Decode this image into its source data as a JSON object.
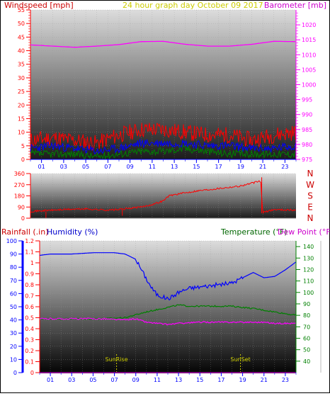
{
  "colors": {
    "red": "#ff0000",
    "blue": "#0000ff",
    "green": "#008000",
    "magenta": "#ff00ff",
    "olive": "#cccc00",
    "purple": "#cc00cc",
    "darkred": "#cc0000"
  },
  "chart_data": [
    {
      "type": "line",
      "title": "24 hour graph day   October 09 2017",
      "ylabel_left": "Windspeed [mph]",
      "ylabel_right": "Barometer [mb]",
      "x_ticks": [
        "01",
        "03",
        "05",
        "07",
        "09",
        "11",
        "13",
        "15",
        "17",
        "19",
        "21",
        "23"
      ],
      "y_left_ticks": [
        "0",
        "5",
        "10",
        "15",
        "20",
        "25",
        "30",
        "35",
        "40",
        "45",
        "50",
        "55"
      ],
      "y_right_ticks": [
        "975",
        "980",
        "985",
        "990",
        "995",
        "1000",
        "1005",
        "1010",
        "1015",
        "1020"
      ],
      "ylim_left": [
        0,
        55
      ],
      "ylim_right": [
        975,
        1025
      ],
      "grid": true,
      "series": [
        {
          "axis": "right",
          "color": "magenta",
          "x": [
            0,
            2,
            4,
            6,
            8,
            10,
            12,
            14,
            16,
            18,
            20,
            22,
            24
          ],
          "values": [
            1013.3,
            1012.9,
            1012.5,
            1012.9,
            1013.4,
            1014.4,
            1014.5,
            1013.5,
            1012.9,
            1012.9,
            1013.5,
            1014.5,
            1014.4
          ]
        },
        {
          "axis": "left",
          "color": "red",
          "x": [
            0,
            2,
            4,
            6,
            8,
            10,
            12,
            14,
            16,
            18,
            20,
            22,
            24
          ],
          "values": [
            7,
            8,
            7,
            6,
            9,
            11,
            11,
            10,
            9,
            9,
            7,
            9,
            10
          ]
        },
        {
          "axis": "left",
          "color": "blue",
          "x": [
            0,
            2,
            4,
            6,
            8,
            10,
            12,
            14,
            16,
            18,
            20,
            22,
            24
          ],
          "values": [
            4,
            5,
            4,
            3,
            4,
            6,
            6,
            6,
            5,
            5,
            4,
            4,
            5
          ]
        },
        {
          "axis": "left",
          "color": "green",
          "x": [
            0,
            2,
            4,
            6,
            8,
            10,
            12,
            14,
            16,
            18,
            20,
            22,
            24
          ],
          "values": [
            2,
            2,
            2,
            1,
            2,
            3,
            3,
            4,
            3,
            2,
            2,
            2,
            2
          ]
        }
      ]
    },
    {
      "type": "line",
      "ylim": [
        0,
        360
      ],
      "y_ticks": [
        "0",
        "90",
        "180",
        "270",
        "360"
      ],
      "compass_labels": [
        "N",
        "W",
        "S",
        "E",
        "N"
      ],
      "grid": true,
      "series": [
        {
          "color": "red",
          "x": [
            0,
            1,
            3,
            5,
            7,
            8,
            10,
            11,
            12,
            12.5,
            13,
            15,
            17,
            19,
            20.8,
            21,
            22,
            24
          ],
          "values": [
            55,
            60,
            70,
            75,
            65,
            70,
            90,
            110,
            140,
            180,
            190,
            220,
            240,
            260,
            300,
            45,
            70,
            65
          ]
        }
      ]
    },
    {
      "type": "line",
      "ylabel_left_1": "Rainfall (.in)",
      "ylabel_left_2": "Humidity (%)",
      "ylabel_right_1": "Temperature (°F)",
      "ylabel_right_2": "Dew Point (°F)",
      "rain_ticks": [
        "0",
        "0.1",
        "0.2",
        "0.3",
        "0.4",
        "0.5",
        "0.6",
        "0.7",
        "0.8",
        "0.9",
        "1",
        "1.1",
        "1.2"
      ],
      "humidity_ticks": [
        "0",
        "10",
        "20",
        "30",
        "40",
        "50",
        "60",
        "70",
        "80",
        "90",
        "100"
      ],
      "temp_ticks": [
        "40",
        "50",
        "60",
        "70",
        "80",
        "90",
        "100",
        "110",
        "120",
        "130",
        "140"
      ],
      "x_ticks": [
        "01",
        "03",
        "05",
        "07",
        "09",
        "11",
        "13",
        "15",
        "17",
        "19",
        "21",
        "23"
      ],
      "ylim_humidity": [
        0,
        100
      ],
      "ylim_temp": [
        30,
        145
      ],
      "markers": [
        {
          "label": "SunRise",
          "x": 7.2
        },
        {
          "label": "SunSet",
          "x": 18.8
        }
      ],
      "series": [
        {
          "name": "Humidity (%)",
          "axis": "humidity",
          "color": "blue",
          "x": [
            0,
            1,
            3,
            5,
            7,
            8,
            9,
            10,
            10.5,
            11,
            12,
            12.5,
            13,
            14,
            16,
            18,
            19,
            20,
            21,
            22,
            23,
            24
          ],
          "values": [
            89,
            90,
            90,
            91,
            91,
            90,
            86,
            71,
            64,
            59,
            56,
            58,
            61,
            64,
            66,
            68,
            72,
            76,
            72,
            73,
            78,
            84
          ]
        },
        {
          "name": "Temperature (°F)",
          "axis": "temp",
          "color": "green",
          "x": [
            0,
            2,
            4,
            6,
            8,
            10,
            12,
            13,
            14,
            16,
            18,
            20,
            22,
            24
          ],
          "values": [
            77,
            77,
            77,
            77,
            78,
            83,
            87,
            89,
            88,
            88,
            88,
            86,
            83,
            80
          ]
        },
        {
          "name": "Dew Point (°F)",
          "axis": "temp",
          "color": "magenta",
          "x": [
            0,
            2,
            4,
            6,
            8,
            9,
            10,
            11,
            12,
            13,
            15,
            17,
            19,
            21,
            22,
            24
          ],
          "values": [
            77,
            77,
            77,
            77,
            76,
            77,
            74,
            73,
            72,
            73,
            74,
            74,
            74,
            74,
            73,
            73
          ]
        },
        {
          "name": "Rainfall (.in)",
          "axis": "rain",
          "color": "red",
          "x": [
            0,
            24
          ],
          "values": [
            0,
            0
          ]
        }
      ]
    }
  ]
}
